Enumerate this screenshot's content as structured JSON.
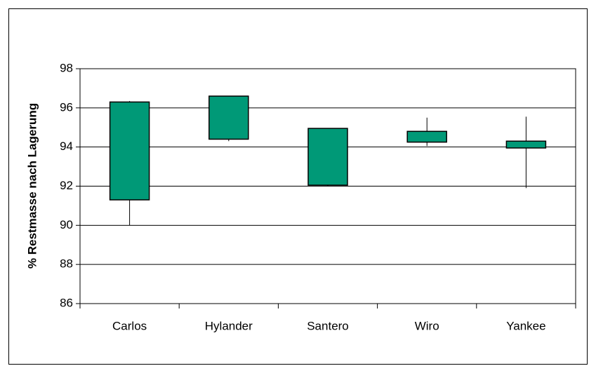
{
  "chart_data": {
    "type": "candlestick",
    "y_label": "% Restmasse nach Lagerung",
    "categories": [
      "Carlos",
      "Hylander",
      "Santero",
      "Wiro",
      "Yankee"
    ],
    "high": [
      96.35,
      96.6,
      94.95,
      95.5,
      95.55
    ],
    "low": [
      90.0,
      94.3,
      92.0,
      94.05,
      91.9
    ],
    "box_high": [
      96.3,
      96.6,
      94.95,
      94.8,
      94.3
    ],
    "box_low": [
      91.3,
      94.4,
      92.05,
      94.25,
      93.95
    ],
    "color": "#009977",
    "ylim": [
      86,
      98
    ],
    "yticks": [
      86,
      88,
      90,
      92,
      94,
      96,
      98
    ],
    "grid": true
  }
}
